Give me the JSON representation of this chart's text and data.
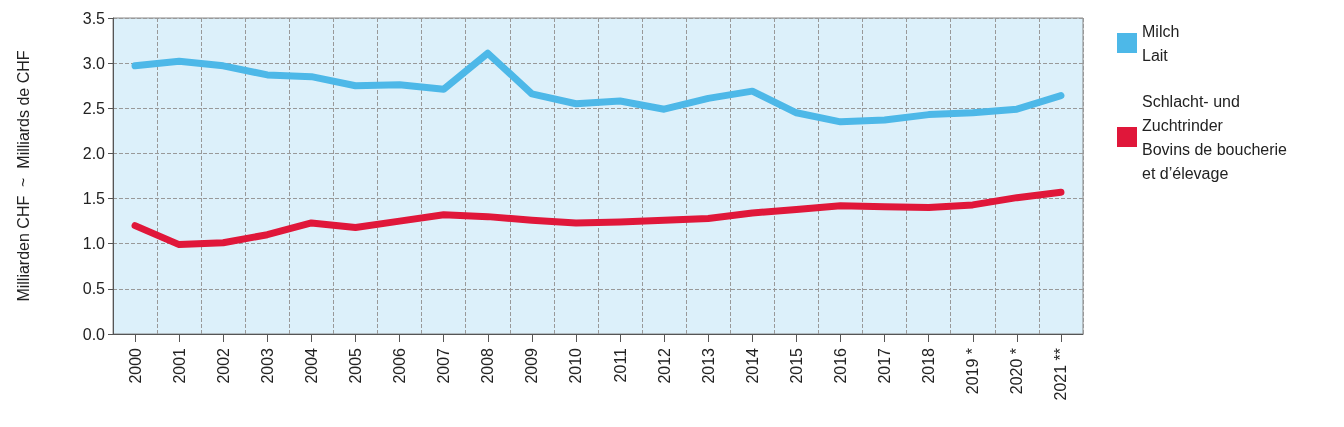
{
  "chart_data": {
    "type": "line",
    "ylabel": "Milliarden CHF  ~  Milliards de CHF",
    "categories": [
      "2000",
      "2001",
      "2002",
      "2003",
      "2004",
      "2005",
      "2006",
      "2007",
      "2008",
      "2009",
      "2010",
      "2011",
      "2012",
      "2013",
      "2014",
      "2015",
      "2016",
      "2017",
      "2018",
      "2019 *",
      "2020 *",
      "2021 **"
    ],
    "series": [
      {
        "name": "Milch\nLait",
        "color": "#4db8e8",
        "values": [
          2.97,
          3.02,
          2.97,
          2.87,
          2.85,
          2.75,
          2.76,
          2.71,
          3.11,
          2.66,
          2.55,
          2.58,
          2.49,
          2.61,
          2.69,
          2.45,
          2.35,
          2.37,
          2.43,
          2.45,
          2.49,
          2.64
        ]
      },
      {
        "name": "Schlacht- und\nZuchtrinder\nBovins de boucherie\net d’élevage",
        "color": "#e0173a",
        "values": [
          1.2,
          0.99,
          1.01,
          1.1,
          1.23,
          1.18,
          1.25,
          1.32,
          1.3,
          1.26,
          1.23,
          1.24,
          1.26,
          1.28,
          1.34,
          1.38,
          1.42,
          1.41,
          1.4,
          1.43,
          1.51,
          1.57
        ]
      }
    ],
    "ylim": [
      0,
      3.5
    ],
    "yticks": [
      {
        "value": 0,
        "label": "0.0"
      },
      {
        "value": 0.5,
        "label": "0.5"
      },
      {
        "value": 1,
        "label": "1.0"
      },
      {
        "value": 1.5,
        "label": "1.5"
      },
      {
        "value": 2,
        "label": "2.0"
      },
      {
        "value": 2.5,
        "label": "2.5"
      },
      {
        "value": 3,
        "label": "3.0"
      },
      {
        "value": 3.5,
        "label": "3.5"
      }
    ],
    "grid": true,
    "legend": "right",
    "marker": "none",
    "line_style": "solid"
  }
}
